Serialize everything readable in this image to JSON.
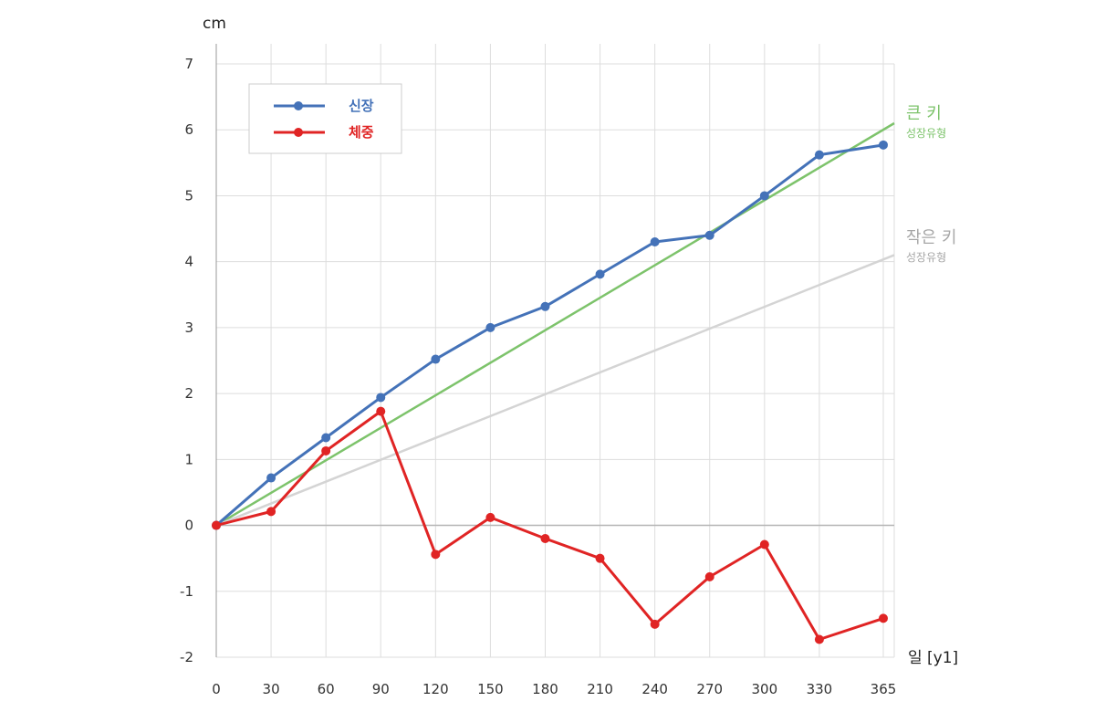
{
  "chart_data": {
    "type": "line",
    "y_unit": "cm",
    "x_unit": "일 [y1]",
    "x": [
      0,
      30,
      60,
      90,
      120,
      150,
      180,
      210,
      240,
      270,
      300,
      330,
      365
    ],
    "x_tick_labels": [
      "0",
      "30",
      "60",
      "90",
      "120",
      "150",
      "180",
      "210",
      "240",
      "270",
      "300",
      "330",
      "365"
    ],
    "y_tick_labels": [
      "-2",
      "-1",
      "0",
      "1",
      "2",
      "3",
      "4",
      "5",
      "6",
      "7"
    ],
    "xlim": [
      0,
      365
    ],
    "ylim": [
      -2,
      7
    ],
    "grid": true,
    "legend_position": "top-left",
    "series": [
      {
        "name": "신장",
        "color": "#4472b8",
        "values": [
          0,
          0.72,
          1.33,
          1.94,
          2.52,
          3.0,
          3.32,
          3.81,
          4.3,
          4.4,
          5.0,
          5.62,
          5.77
        ]
      },
      {
        "name": "체중",
        "color": "#e02424",
        "values": [
          0,
          0.21,
          1.13,
          1.73,
          -0.44,
          0.12,
          -0.2,
          -0.5,
          -1.5,
          -0.78,
          -0.29,
          -1.73,
          -1.41
        ]
      }
    ],
    "reference_lines": [
      {
        "title": "큰 키",
        "subtitle": "성장유형",
        "color": "#7dc36b",
        "from": [
          0,
          0
        ],
        "to": [
          365,
          6.1
        ]
      },
      {
        "title": "작은 키",
        "subtitle": "성장유형",
        "color": "#a7a7a7",
        "line_color": "#d4d4d4",
        "from": [
          0,
          0
        ],
        "to": [
          365,
          4.1
        ]
      }
    ]
  }
}
